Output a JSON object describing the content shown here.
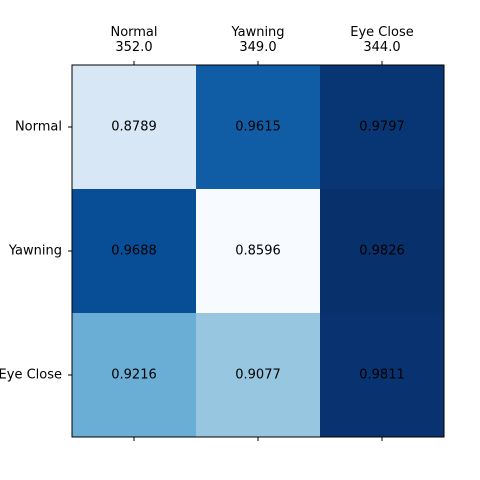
{
  "chart_data": {
    "type": "heatmap",
    "title": "",
    "xlabel": "",
    "ylabel": "",
    "x_labels": [
      {
        "name": "Normal",
        "count": "352.0"
      },
      {
        "name": "Yawning",
        "count": "349.0"
      },
      {
        "name": "Eye Close",
        "count": "344.0"
      }
    ],
    "y_labels": [
      "Normal",
      "Yawning",
      "Eye Close"
    ],
    "values": [
      [
        0.8789,
        0.9615,
        0.9797
      ],
      [
        0.9688,
        0.8596,
        0.9826
      ],
      [
        0.9216,
        0.9077,
        0.9811
      ]
    ],
    "value_labels": [
      [
        "0.8789",
        "0.9615",
        "0.9797"
      ],
      [
        "0.9688",
        "0.8596",
        "0.9826"
      ],
      [
        "0.9216",
        "0.9077",
        "0.9811"
      ]
    ],
    "colormap": "Blues",
    "value_range": [
      0.8596,
      0.9826
    ],
    "grid": false,
    "legend": "none",
    "x_axis_position": "top",
    "colors": {
      "low": "#f7fbff",
      "high": "#08306b",
      "text": "#000000"
    }
  }
}
